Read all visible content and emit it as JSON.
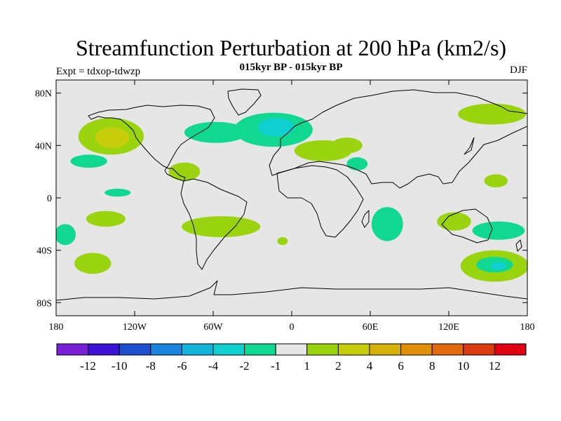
{
  "header": {
    "title": "Streamfunction Perturbation at 200 hPa (km2/s)",
    "subtitle": "015kyr BP - 015kyr BP",
    "left_label": "Expt = tdxop-tdwzp",
    "right_label": "DJF"
  },
  "map": {
    "lon_range": [
      -180,
      180
    ],
    "lat_range": [
      -90,
      90
    ],
    "x_ticks": [
      {
        "lon": -180,
        "label": "180"
      },
      {
        "lon": -120,
        "label": "120W"
      },
      {
        "lon": -60,
        "label": "60W"
      },
      {
        "lon": 0,
        "label": "0"
      },
      {
        "lon": 60,
        "label": "60E"
      },
      {
        "lon": 120,
        "label": "120E"
      },
      {
        "lon": 180,
        "label": "180"
      }
    ],
    "y_ticks": [
      {
        "lat": 80,
        "label": "80N"
      },
      {
        "lat": 40,
        "label": "40N"
      },
      {
        "lat": 0,
        "label": "0"
      },
      {
        "lat": -40,
        "label": "40S"
      },
      {
        "lat": -80,
        "label": "80S"
      }
    ],
    "background_color": "#e6e6e6"
  },
  "colorbar": {
    "colors": [
      "#7a1fd8",
      "#3c12d6",
      "#1e4fd0",
      "#1a84e0",
      "#12b4dc",
      "#10cfd0",
      "#10d890",
      "#e6e6e6",
      "#9ad40e",
      "#c8cd0a",
      "#d8b00a",
      "#e2900a",
      "#e06a0c",
      "#dc3a10",
      "#e00010"
    ],
    "labels": [
      "-12",
      "-10",
      "-8",
      "-6",
      "-4",
      "-2",
      "-1",
      "1",
      "2",
      "4",
      "6",
      "8",
      "10",
      "12"
    ]
  },
  "anomalies": [
    {
      "lon": -138,
      "lat": 47,
      "rx": 25,
      "ry": 14,
      "level": 1
    },
    {
      "lon": -137,
      "lat": 46,
      "rx": 13,
      "ry": 8,
      "level": 2
    },
    {
      "lon": -155,
      "lat": 28,
      "rx": 14,
      "ry": 5,
      "level": -1
    },
    {
      "lon": -133,
      "lat": 4,
      "rx": 10,
      "ry": 3,
      "level": -1
    },
    {
      "lon": -142,
      "lat": -16,
      "rx": 15,
      "ry": 6,
      "level": 1
    },
    {
      "lon": -173,
      "lat": -28,
      "rx": 8,
      "ry": 8,
      "level": -1
    },
    {
      "lon": -152,
      "lat": -50,
      "rx": 14,
      "ry": 8,
      "level": 1
    },
    {
      "lon": -82,
      "lat": 20,
      "rx": 12,
      "ry": 7,
      "level": 1
    },
    {
      "lon": -54,
      "lat": -22,
      "rx": 30,
      "ry": 8,
      "level": 1
    },
    {
      "lon": -58,
      "lat": 50,
      "rx": 24,
      "ry": 8,
      "level": -1
    },
    {
      "lon": -14,
      "lat": 52,
      "rx": 30,
      "ry": 13,
      "level": -1
    },
    {
      "lon": -12,
      "lat": 54,
      "rx": 14,
      "ry": 7,
      "level": -2
    },
    {
      "lon": -7,
      "lat": -33,
      "rx": 4,
      "ry": 3,
      "level": 1
    },
    {
      "lon": 24,
      "lat": 36,
      "rx": 22,
      "ry": 8,
      "level": 1
    },
    {
      "lon": 42,
      "lat": 40,
      "rx": 12,
      "ry": 6,
      "level": 1
    },
    {
      "lon": 50,
      "lat": 26,
      "rx": 8,
      "ry": 5,
      "level": -1
    },
    {
      "lon": 73,
      "lat": -20,
      "rx": 12,
      "ry": 13,
      "level": -1
    },
    {
      "lon": 153,
      "lat": 64,
      "rx": 26,
      "ry": 8,
      "level": 1
    },
    {
      "lon": 156,
      "lat": 13,
      "rx": 9,
      "ry": 5,
      "level": 1
    },
    {
      "lon": 124,
      "lat": -18,
      "rx": 13,
      "ry": 7,
      "level": 1
    },
    {
      "lon": 158,
      "lat": -25,
      "rx": 20,
      "ry": 7,
      "level": -1
    },
    {
      "lon": 155,
      "lat": -52,
      "rx": 26,
      "ry": 12,
      "level": 1
    },
    {
      "lon": 155,
      "lat": -51,
      "rx": 14,
      "ry": 6,
      "level": -1
    },
    {
      "lon": 158,
      "lat": -52,
      "rx": 6,
      "ry": 3,
      "level": -2
    }
  ]
}
